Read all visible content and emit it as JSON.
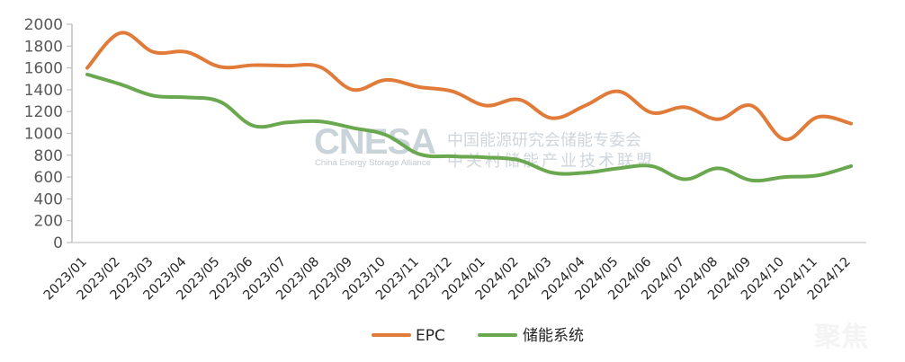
{
  "chart_data": {
    "type": "line",
    "title": "",
    "xlabel": "",
    "ylabel": "",
    "ylim": [
      0,
      2000
    ],
    "yticks": [
      0,
      200,
      400,
      600,
      800,
      1000,
      1200,
      1400,
      1600,
      1800,
      2000
    ],
    "grid": false,
    "legend_position": "bottom",
    "categories": [
      "2023/01",
      "2023/02",
      "2023/03",
      "2023/04",
      "2023/05",
      "2023/06",
      "2023/07",
      "2023/08",
      "2023/09",
      "2023/10",
      "2023/11",
      "2023/12",
      "2024/01",
      "2024/02",
      "2024/03",
      "2024/04",
      "2024/05",
      "2024/06",
      "2024/07",
      "2024/08",
      "2024/09",
      "2024/10",
      "2024/11",
      "2024/12"
    ],
    "series": [
      {
        "name": "EPC",
        "color": "#E07B39",
        "values": [
          1600,
          1920,
          1745,
          1745,
          1610,
          1625,
          1620,
          1610,
          1400,
          1490,
          1425,
          1385,
          1255,
          1310,
          1140,
          1255,
          1385,
          1190,
          1240,
          1130,
          1255,
          945,
          1150,
          1090
        ]
      },
      {
        "name": "储能系统",
        "color": "#6AA84F",
        "values": [
          1540,
          1450,
          1345,
          1330,
          1290,
          1070,
          1100,
          1110,
          1050,
          985,
          810,
          790,
          780,
          755,
          640,
          640,
          680,
          700,
          580,
          680,
          570,
          600,
          615,
          700
        ]
      }
    ]
  },
  "watermark": {
    "logo": "CNESA",
    "subtitle": "China Energy Storage Alliance",
    "line1": "中国能源研究会储能专委会",
    "line2": "中关村储能产业技术联盟",
    "corner": "聚焦"
  }
}
